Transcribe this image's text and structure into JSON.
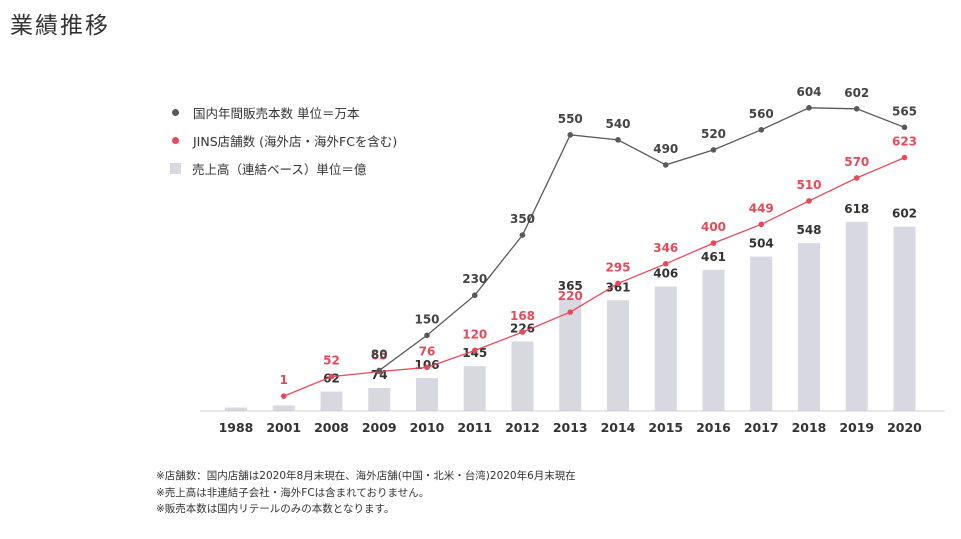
{
  "page": {
    "title": "業績推移"
  },
  "legend": {
    "items": [
      {
        "label": "国内年間販売本数 単位＝万本",
        "color": "#595959",
        "shape": "dot"
      },
      {
        "label": "JINS店舗数 (海外店・海外FCを含む)",
        "color": "#e8495a",
        "shape": "dot"
      },
      {
        "label": "売上高（連結ベース）単位＝億",
        "color": "#d7d8e0",
        "shape": "box"
      }
    ]
  },
  "chart_data": {
    "type": "bar",
    "categories": [
      "1988",
      "2001",
      "2008",
      "2009",
      "2010",
      "2011",
      "2012",
      "2013",
      "2014",
      "2015",
      "2016",
      "2017",
      "2018",
      "2019",
      "2020"
    ],
    "series": [
      {
        "name": "売上高（連結ベース）単位＝億",
        "kind": "bar",
        "color": "#d7d8e0",
        "values": [
          null,
          null,
          62,
          74,
          106,
          145,
          226,
          365,
          361,
          406,
          461,
          504,
          548,
          618,
          602
        ]
      },
      {
        "name": "JINS店舗数 (海外店・海外FCを含む)",
        "kind": "line",
        "color": "#e8495a",
        "values": [
          null,
          1,
          52,
          65,
          76,
          120,
          168,
          220,
          295,
          346,
          400,
          449,
          510,
          570,
          623
        ]
      },
      {
        "name": "国内年間販売本数 単位＝万本",
        "kind": "line",
        "color": "#595959",
        "values": [
          null,
          null,
          null,
          80,
          150,
          230,
          350,
          550,
          540,
          490,
          520,
          560,
          604,
          602,
          565
        ]
      }
    ]
  },
  "notes": [
    "※店舗数：国内店舗は2020年8月末現在、海外店舗(中国・北米・台湾)2020年6月末現在",
    "※売上高は非連結子会社・海外FCは含まれておりません。",
    "※販売本数は国内リテールのみの本数となります。"
  ]
}
